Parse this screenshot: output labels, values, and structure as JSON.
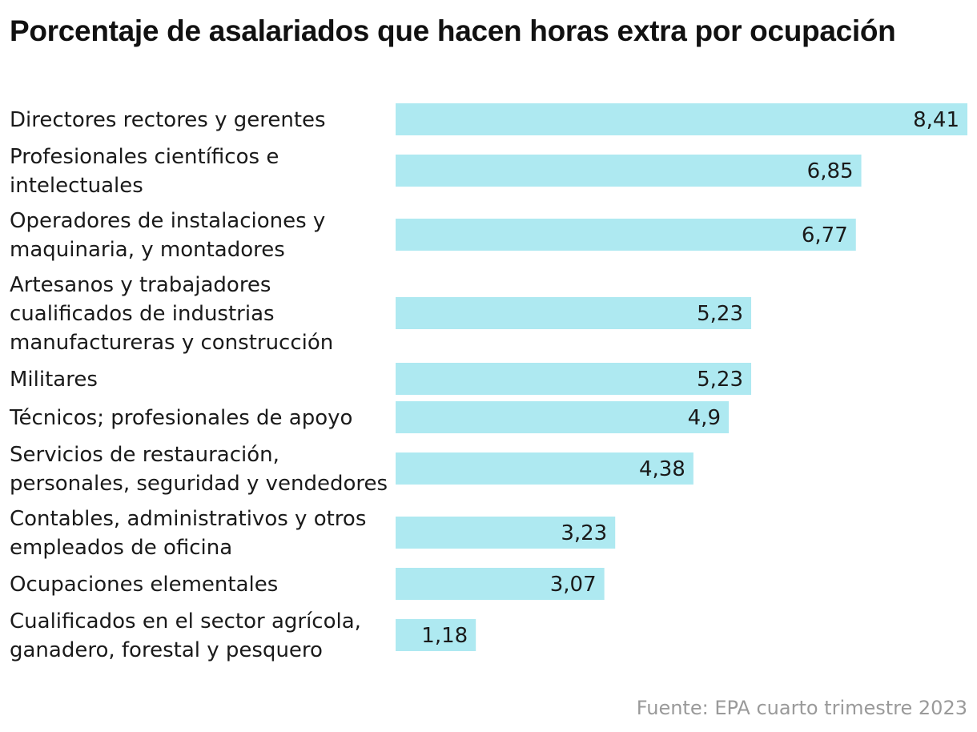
{
  "chart_data": {
    "type": "bar",
    "orientation": "horizontal",
    "title": "Porcentaje de asalariados que hacen horas extra por ocupación",
    "categories": [
      [
        "Directores rectores y gerentes"
      ],
      [
        "Profesionales científicos e",
        "intelectuales"
      ],
      [
        "Operadores de instalaciones y",
        "maquinaria, y montadores"
      ],
      [
        "Artesanos y trabajadores",
        "cualificados de industrias",
        "manufactureras y construcción"
      ],
      [
        "Militares"
      ],
      [
        "Técnicos; profesionales de apoyo"
      ],
      [
        "Servicios de restauración,",
        "personales, seguridad y vendedores"
      ],
      [
        "Contables, administrativos y otros",
        "empleados de oficina"
      ],
      [
        "Ocupaciones elementales"
      ],
      [
        "Cualificados en el sector agrícola,",
        "ganadero, forestal y pesquero"
      ]
    ],
    "values": [
      8.41,
      6.85,
      6.77,
      5.23,
      5.23,
      4.9,
      4.38,
      3.23,
      3.07,
      1.18
    ],
    "value_labels": [
      "8,41",
      "6,85",
      "6,77",
      "5,23",
      "5,23",
      "4,9",
      "4,38",
      "3,23",
      "3,07",
      "1,18"
    ],
    "xlim": [
      0,
      8.41
    ],
    "bar_color": "#aee9f1",
    "grid": false,
    "legend": "none"
  },
  "source": "Fuente: EPA cuarto trimestre 2023"
}
